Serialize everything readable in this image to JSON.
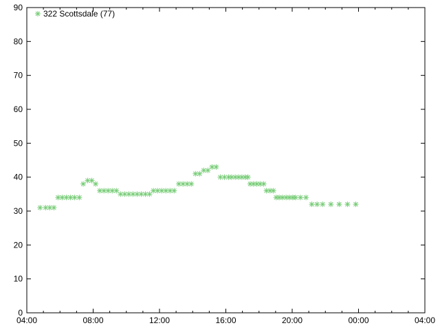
{
  "chart_data": {
    "type": "scatter",
    "title": "",
    "xlabel": "",
    "ylabel": "",
    "xlim": [
      "04:00",
      "04:00"
    ],
    "ylim": [
      0,
      90
    ],
    "x_ticks": [
      "04:00",
      "08:00",
      "12:00",
      "16:00",
      "20:00",
      "00:00",
      "04:00"
    ],
    "y_ticks": [
      "0",
      "10",
      "20",
      "30",
      "40",
      "50",
      "60",
      "70",
      "80",
      "90"
    ],
    "grid": false,
    "legend": {
      "position": "top-left",
      "label": "322 Scottsdale (77)"
    },
    "marker": "asterisk",
    "color": "#77cc77",
    "series": [
      {
        "name": "322 Scottsdale (77)",
        "points": [
          [
            "04:48",
            31
          ],
          [
            "05:08",
            31
          ],
          [
            "05:23",
            31
          ],
          [
            "05:38",
            31
          ],
          [
            "05:53",
            34
          ],
          [
            "06:08",
            34
          ],
          [
            "06:23",
            34
          ],
          [
            "06:38",
            34
          ],
          [
            "06:53",
            34
          ],
          [
            "07:10",
            34
          ],
          [
            "07:24",
            38
          ],
          [
            "07:40",
            39
          ],
          [
            "07:55",
            39
          ],
          [
            "08:09",
            38
          ],
          [
            "08:24",
            36
          ],
          [
            "08:39",
            36
          ],
          [
            "08:54",
            36
          ],
          [
            "09:09",
            36
          ],
          [
            "09:24",
            36
          ],
          [
            "09:39",
            35
          ],
          [
            "09:54",
            35
          ],
          [
            "10:09",
            35
          ],
          [
            "10:24",
            35
          ],
          [
            "10:39",
            35
          ],
          [
            "10:54",
            35
          ],
          [
            "11:09",
            35
          ],
          [
            "11:24",
            35
          ],
          [
            "11:38",
            36
          ],
          [
            "11:53",
            36
          ],
          [
            "12:08",
            36
          ],
          [
            "12:23",
            36
          ],
          [
            "12:38",
            36
          ],
          [
            "12:53",
            36
          ],
          [
            "13:10",
            38
          ],
          [
            "13:25",
            38
          ],
          [
            "13:40",
            38
          ],
          [
            "13:55",
            38
          ],
          [
            "14:10",
            41
          ],
          [
            "14:25",
            41
          ],
          [
            "14:40",
            42
          ],
          [
            "14:55",
            42
          ],
          [
            "15:10",
            43
          ],
          [
            "15:25",
            43
          ],
          [
            "15:40",
            40
          ],
          [
            "15:55",
            40
          ],
          [
            "16:10",
            40
          ],
          [
            "16:21",
            40
          ],
          [
            "16:34",
            40
          ],
          [
            "16:46",
            40
          ],
          [
            "16:58",
            40
          ],
          [
            "17:10",
            40
          ],
          [
            "17:20",
            40
          ],
          [
            "17:28",
            38
          ],
          [
            "17:40",
            38
          ],
          [
            "17:52",
            38
          ],
          [
            "18:04",
            38
          ],
          [
            "18:17",
            38
          ],
          [
            "18:27",
            36
          ],
          [
            "18:40",
            36
          ],
          [
            "18:52",
            36
          ],
          [
            "19:02",
            34
          ],
          [
            "19:13",
            34
          ],
          [
            "19:25",
            34
          ],
          [
            "19:38",
            34
          ],
          [
            "19:50",
            34
          ],
          [
            "20:02",
            34
          ],
          [
            "20:12",
            34
          ],
          [
            "20:30",
            34
          ],
          [
            "20:50",
            34
          ],
          [
            "21:11",
            32
          ],
          [
            "21:30",
            32
          ],
          [
            "21:50",
            32
          ],
          [
            "22:20",
            32
          ],
          [
            "22:50",
            32
          ],
          [
            "23:20",
            32
          ],
          [
            "23:50",
            32
          ]
        ]
      }
    ]
  }
}
